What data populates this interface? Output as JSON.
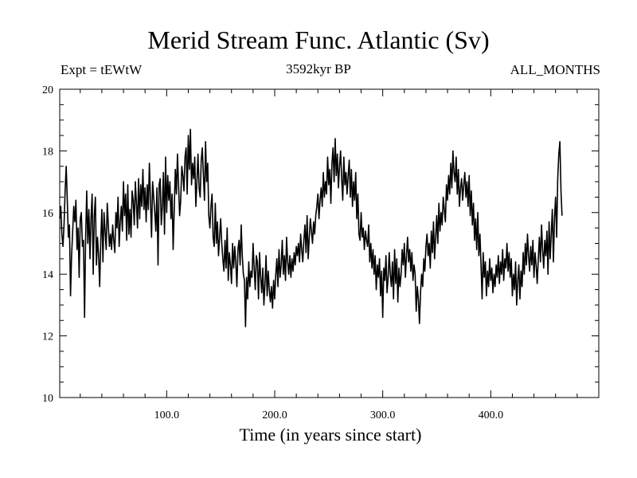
{
  "chart_data": {
    "type": "line",
    "title": "Merid Stream Func. Atlantic (Sv)",
    "subtitle_left": "Expt = tEWtW",
    "subtitle_center": "3592kyr BP",
    "subtitle_right": "ALL_MONTHS",
    "xlabel": "Time (in years since start)",
    "ylabel": "",
    "xlim": [
      1,
      500
    ],
    "ylim": [
      10,
      20
    ],
    "x_ticks": [
      100,
      200,
      300,
      400
    ],
    "x_tick_labels": [
      "100.0",
      "200.0",
      "300.0",
      "400.0"
    ],
    "y_ticks": [
      10,
      12,
      14,
      16,
      18,
      20
    ],
    "y_tick_labels": [
      "10",
      "12",
      "14",
      "16",
      "18",
      "20"
    ],
    "series": [
      {
        "name": "Merid Stream Func. Atlantic",
        "x_start": 1,
        "x_step": 1,
        "values": [
          15.8,
          16.2,
          15.3,
          14.9,
          15.6,
          16.7,
          17.5,
          16.4,
          15.2,
          15.6,
          13.3,
          14.6,
          15.4,
          16.2,
          15.7,
          16.4,
          14.8,
          15.5,
          13.9,
          15.8,
          16.0,
          14.9,
          15.1,
          12.6,
          15.2,
          16.7,
          15.0,
          16.1,
          14.5,
          15.8,
          16.6,
          14.0,
          15.9,
          16.5,
          14.3,
          15.2,
          14.6,
          13.6,
          15.1,
          16.1,
          14.4,
          16.0,
          15.4,
          14.8,
          16.3,
          15.6,
          14.9,
          15.3,
          14.8,
          15.6,
          15.1,
          14.7,
          16.0,
          15.5,
          16.5,
          14.9,
          15.7,
          16.2,
          15.4,
          17.0,
          15.9,
          16.6,
          15.1,
          16.9,
          15.3,
          16.1,
          15.2,
          16.7,
          16.4,
          15.6,
          17.0,
          16.3,
          15.5,
          17.1,
          15.8,
          16.9,
          16.2,
          17.4,
          16.1,
          16.8,
          15.7,
          16.9,
          16.1,
          17.6,
          16.4,
          15.2,
          17.0,
          16.5,
          16.0,
          15.4,
          16.8,
          14.3,
          16.9,
          17.1,
          15.6,
          16.2,
          17.3,
          15.3,
          17.8,
          16.0,
          17.2,
          16.4,
          17.0,
          15.8,
          16.6,
          14.8,
          16.1,
          17.4,
          16.6,
          17.9,
          16.9,
          15.9,
          16.4,
          17.5,
          17.2,
          16.7,
          17.8,
          18.1,
          16.6,
          18.5,
          17.4,
          18.7,
          16.9,
          17.6,
          17.1,
          17.8,
          16.2,
          17.0,
          17.9,
          16.8,
          16.5,
          17.7,
          18.1,
          17.2,
          16.4,
          18.3,
          17.0,
          17.6,
          15.9,
          15.5,
          16.2,
          16.6,
          15.2,
          14.9,
          16.3,
          15.0,
          15.7,
          14.6,
          15.2,
          15.8,
          15.0,
          14.5,
          14.1,
          15.1,
          14.2,
          15.5,
          13.8,
          14.7,
          14.3,
          13.7,
          15.0,
          14.2,
          14.9,
          14.4,
          13.6,
          14.8,
          15.1,
          14.3,
          15.6,
          14.6,
          14.0,
          13.8,
          12.3,
          13.9,
          13.2,
          14.4,
          13.6,
          14.1,
          13.9,
          15.0,
          14.2,
          13.5,
          14.6,
          14.4,
          13.2,
          14.7,
          13.9,
          13.4,
          14.2,
          13.0,
          13.7,
          14.6,
          13.3,
          14.1,
          13.5,
          13.1,
          13.6,
          12.9,
          13.8,
          13.2,
          14.0,
          14.5,
          13.6,
          14.8,
          13.9,
          14.3,
          15.1,
          14.0,
          14.6,
          13.8,
          15.2,
          14.4,
          14.0,
          14.6,
          13.9,
          14.5,
          14.1,
          14.7,
          14.3,
          14.9,
          14.6,
          15.0,
          14.4,
          15.3,
          14.8,
          14.4,
          15.1,
          15.6,
          14.7,
          15.9,
          14.5,
          15.2,
          15.8,
          15.4,
          15.0,
          15.7,
          15.3,
          15.9,
          16.2,
          16.6,
          15.8,
          16.4,
          16.8,
          16.2,
          17.3,
          16.5,
          17.0,
          16.6,
          17.8,
          16.9,
          17.4,
          16.3,
          17.6,
          18.1,
          17.0,
          18.4,
          17.2,
          17.9,
          16.8,
          17.5,
          18.0,
          17.1,
          16.4,
          17.8,
          16.9,
          17.3,
          16.6,
          17.2,
          17.7,
          16.5,
          17.4,
          16.2,
          17.0,
          16.4,
          17.3,
          15.8,
          16.6,
          15.3,
          15.1,
          16.0,
          15.2,
          15.5,
          14.8,
          15.4,
          15.1,
          14.9,
          15.6,
          14.4,
          15.0,
          14.2,
          14.8,
          14.0,
          14.6,
          13.5,
          14.3,
          13.9,
          14.5,
          13.3,
          14.1,
          12.6,
          14.2,
          13.8,
          14.6,
          13.4,
          13.9,
          14.7,
          14.0,
          13.6,
          14.4,
          13.2,
          14.8,
          13.7,
          14.5,
          13.1,
          14.2,
          13.6,
          14.0,
          14.8,
          14.3,
          15.0,
          13.9,
          14.6,
          15.2,
          14.4,
          14.8,
          14.1,
          14.7,
          13.8,
          14.3,
          14.0,
          12.8,
          13.6,
          13.2,
          12.4,
          13.4,
          14.0,
          13.6,
          14.5,
          14.1,
          14.9,
          15.3,
          14.6,
          15.0,
          14.2,
          15.4,
          14.7,
          15.7,
          14.5,
          15.2,
          15.9,
          15.0,
          16.3,
          15.4,
          16.0,
          15.6,
          16.5,
          16.1,
          15.7,
          16.9,
          16.4,
          17.2,
          16.6,
          17.6,
          16.8,
          18.0,
          17.3,
          17.0,
          17.8,
          16.6,
          17.4,
          16.2,
          16.8,
          17.1,
          16.4,
          16.9,
          17.3,
          16.5,
          17.0,
          16.2,
          17.2,
          15.9,
          16.7,
          15.6,
          16.3,
          15.1,
          15.8,
          14.8,
          16.0,
          14.6,
          15.3,
          14.3,
          13.2,
          14.7,
          13.9,
          14.4,
          13.3,
          14.1,
          13.6,
          14.5,
          13.8,
          14.2,
          13.4,
          14.0,
          13.6,
          14.3,
          13.9,
          14.6,
          13.7,
          14.4,
          14.0,
          14.8,
          13.8,
          14.5,
          14.2,
          15.0,
          14.1,
          14.7,
          13.9,
          14.5,
          13.3,
          14.0,
          13.5,
          14.4,
          13.0,
          13.8,
          14.3,
          13.2,
          14.1,
          13.6,
          14.7,
          14.0,
          15.0,
          14.3,
          15.3,
          14.6,
          14.1,
          14.9,
          14.3,
          15.1,
          13.9,
          14.7,
          14.3,
          13.7,
          14.5,
          15.2,
          14.4,
          15.6,
          14.8,
          14.2,
          15.1,
          14.6,
          15.4,
          14.0,
          15.7,
          14.5,
          15.3,
          16.1,
          14.4,
          15.8,
          16.5,
          15.2,
          17.1,
          17.9,
          18.3,
          16.7,
          15.9
        ]
      }
    ]
  },
  "colors": {
    "line": "#000000",
    "axes": "#000000",
    "background": "#ffffff"
  }
}
